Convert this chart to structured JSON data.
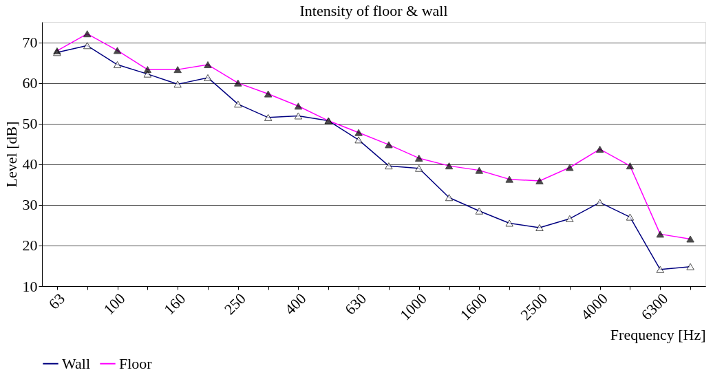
{
  "chart_data": {
    "type": "line",
    "title": "Intensity of floor & wall",
    "xlabel": "Frequency [Hz]",
    "ylabel": "Level [dB]",
    "categories": [
      "63",
      null,
      "100",
      null,
      "160",
      null,
      "250",
      null,
      "400",
      null,
      "630",
      null,
      "1000",
      null,
      "1600",
      null,
      "2500",
      null,
      "4000",
      null,
      "6300",
      null
    ],
    "series": [
      {
        "name": "Wall",
        "color": "#000080",
        "values": [
          67.5,
          69.2,
          64.5,
          62.2,
          59.7,
          61.3,
          54.8,
          51.5,
          51.9,
          50.7,
          46.0,
          39.6,
          39.0,
          31.8,
          28.5,
          25.5,
          24.4,
          26.6,
          30.6,
          27.0,
          14.1,
          14.8
        ]
      },
      {
        "name": "Floor",
        "color": "#ff00ff",
        "values": [
          67.9,
          72.1,
          68.0,
          63.3,
          63.3,
          64.5,
          60.0,
          57.3,
          54.3,
          50.7,
          47.8,
          44.8,
          41.5,
          39.6,
          38.5,
          36.3,
          35.9,
          39.2,
          43.7,
          39.6,
          22.8,
          21.6
        ]
      }
    ],
    "ylim": [
      10,
      75
    ],
    "yticks": [
      10,
      20,
      30,
      40,
      50,
      60,
      70
    ],
    "grid": "y",
    "legend": "bottom",
    "marker": "triangle",
    "line_style": "solid"
  }
}
